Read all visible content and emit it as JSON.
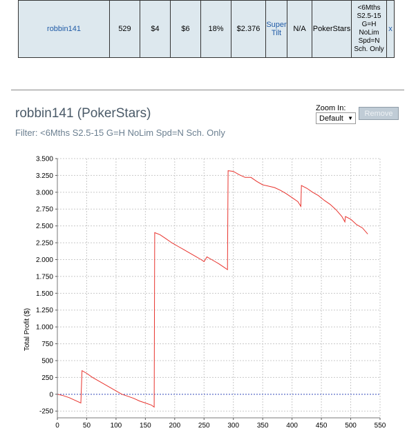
{
  "results_row": {
    "player": "robbin141",
    "hands": "529",
    "col3": "$4",
    "col4": "$6",
    "col5": "18%",
    "col6": "$2.376",
    "col7_link": "Super Tilt",
    "col8": "N/A",
    "site": "PokerStars",
    "filter": "<6Mths S2.5-15 G=H NoLim Spd=N Sch. Only",
    "close": "x"
  },
  "graph_header": {
    "title": "robbin141 (PokerStars)",
    "subtitle": "Filter: <6Mths S2.5-15 G=H NoLim Spd=N Sch. Only",
    "zoom_label": "Zoom In:",
    "zoom_value": "Default",
    "remove_label": "Remove"
  },
  "colors": {
    "line": "#e8322c",
    "zero_line": "#3a4fc4",
    "grid": "#c8c8c8",
    "link": "#1f5aa6"
  },
  "chart_data": {
    "type": "line",
    "title": "robbin141 (PokerStars)",
    "ylabel": "Total Profit ($)",
    "xlabel": "",
    "xlim": [
      0,
      550
    ],
    "ylim": [
      -350,
      3500
    ],
    "x_ticks": [
      0,
      50,
      100,
      150,
      200,
      250,
      300,
      350,
      400,
      450,
      500,
      550
    ],
    "y_ticks": [
      -250,
      0,
      250,
      500,
      750,
      1000,
      1250,
      1500,
      1750,
      2000,
      2250,
      2500,
      2750,
      3000,
      3250,
      3500
    ],
    "y_tick_labels": [
      "-250",
      "0",
      "250",
      "500",
      "750",
      "1.000",
      "1.250",
      "1.500",
      "1.750",
      "2.000",
      "2.250",
      "2.500",
      "2.750",
      "3.000",
      "3.250",
      "3.500"
    ],
    "grid": true,
    "series": [
      {
        "x": [
          0,
          10,
          20,
          30,
          40,
          42,
          50,
          60,
          70,
          80,
          90,
          100,
          110,
          120,
          130,
          140,
          150,
          160,
          165,
          166,
          175,
          185,
          195,
          205,
          215,
          225,
          235,
          245,
          250,
          255,
          265,
          275,
          285,
          290,
          291,
          300,
          310,
          320,
          330,
          340,
          350,
          360,
          370,
          380,
          390,
          400,
          410,
          415,
          416,
          425,
          435,
          445,
          455,
          465,
          475,
          485,
          490,
          491,
          500,
          510,
          520,
          529
        ],
        "y": [
          0,
          -20,
          -50,
          -90,
          -130,
          350,
          310,
          250,
          200,
          150,
          100,
          50,
          0,
          -30,
          -60,
          -100,
          -130,
          -160,
          -190,
          2400,
          2370,
          2310,
          2250,
          2200,
          2150,
          2100,
          2050,
          2000,
          1970,
          2040,
          1990,
          1940,
          1880,
          1850,
          3320,
          3310,
          3260,
          3220,
          3220,
          3160,
          3110,
          3090,
          3070,
          3030,
          2980,
          2920,
          2860,
          2790,
          3100,
          3060,
          3000,
          2950,
          2880,
          2820,
          2740,
          2640,
          2560,
          2640,
          2600,
          2520,
          2470,
          2380
        ]
      }
    ]
  }
}
